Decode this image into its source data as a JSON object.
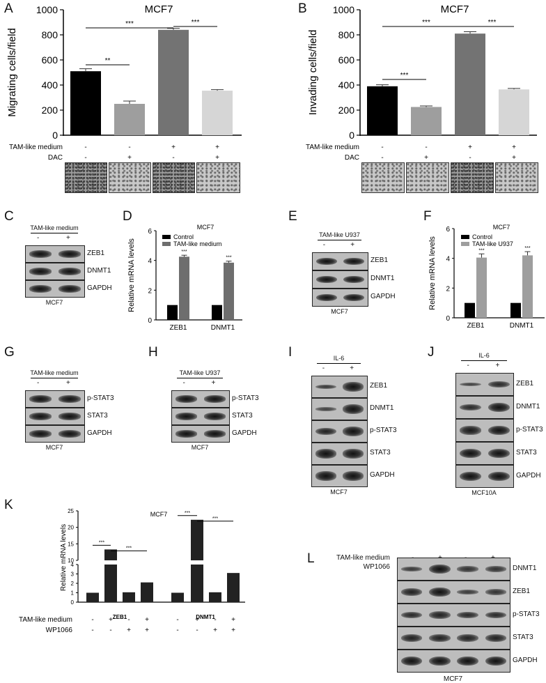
{
  "panel_letters": {
    "A": "A",
    "B": "B",
    "C": "C",
    "D": "D",
    "E": "E",
    "F": "F",
    "G": "G",
    "H": "H",
    "I": "I",
    "J": "J",
    "K": "K",
    "L": "L"
  },
  "chart_data": [
    {
      "panel": "A",
      "type": "bar",
      "title": "MCF7",
      "ylabel": "Migrating cells/field",
      "ylim": [
        0,
        1000
      ],
      "yticks": [
        "0",
        "200",
        "400",
        "600",
        "800",
        "1000"
      ],
      "values": [
        510,
        250,
        840,
        355
      ],
      "errors": [
        20,
        22,
        12,
        8
      ],
      "colors": [
        "#000000",
        "#9e9e9e",
        "#737373",
        "#d6d6d6"
      ],
      "sig": [
        "**",
        "***",
        "***"
      ],
      "conditions": [
        {
          "label": "TAM-like medium",
          "vals": [
            "-",
            "-",
            "+",
            "+"
          ]
        },
        {
          "label": "DAC",
          "vals": [
            "-",
            "+",
            "-",
            "+"
          ]
        }
      ]
    },
    {
      "panel": "B",
      "type": "bar",
      "title": "MCF7",
      "ylabel": "Invading cells/field",
      "ylim": [
        0,
        1000
      ],
      "yticks": [
        "0",
        "200",
        "400",
        "600",
        "800",
        "1000"
      ],
      "values": [
        390,
        225,
        810,
        365
      ],
      "errors": [
        12,
        8,
        15,
        8
      ],
      "colors": [
        "#000000",
        "#9e9e9e",
        "#737373",
        "#d6d6d6"
      ],
      "sig": [
        "***",
        "***",
        "***"
      ],
      "conditions": [
        {
          "label": "TAM-like medium",
          "vals": [
            "-",
            "-",
            "+",
            "+"
          ]
        },
        {
          "label": "DAC",
          "vals": [
            "-",
            "+",
            "-",
            "+"
          ]
        }
      ]
    },
    {
      "panel": "D",
      "type": "bar",
      "title": "MCF7",
      "ylabel": "Relative mRNA levels",
      "ylim": [
        0,
        6
      ],
      "yticks": [
        "0",
        "2",
        "4",
        "6"
      ],
      "categories": [
        "ZEB1",
        "DNMT1"
      ],
      "series": [
        {
          "name": "Control",
          "values": [
            1,
            1
          ],
          "color": "#000000"
        },
        {
          "name": "TAM-like medium",
          "values": [
            4.25,
            3.85
          ],
          "color": "#6e6e6e"
        }
      ],
      "errors": [
        0.1,
        0.1
      ],
      "sig": "***"
    },
    {
      "panel": "F",
      "type": "bar",
      "title": "MCF7",
      "ylabel": "Relative mRNA levels",
      "ylim": [
        0,
        6
      ],
      "yticks": [
        "0",
        "2",
        "4",
        "6"
      ],
      "categories": [
        "ZEB1",
        "DNMT1"
      ],
      "series": [
        {
          "name": "Control",
          "values": [
            1,
            1
          ],
          "color": "#000000"
        },
        {
          "name": "TAM-like U937",
          "values": [
            4.05,
            4.2
          ],
          "color": "#9e9e9e"
        }
      ],
      "errors": [
        0.25,
        0.25
      ],
      "sig": "***"
    },
    {
      "panel": "K",
      "type": "bar",
      "title": "MCF7",
      "ylabel": "Relative mRNA levels",
      "yticks_low": [
        "0",
        "1",
        "2",
        "3",
        "4"
      ],
      "yticks_high": [
        "10",
        "15",
        "20",
        "25"
      ],
      "categories": [
        "ZEB1",
        "DNMT1"
      ],
      "values": [
        [
          1,
          13.3,
          1.05,
          2.1
        ],
        [
          1,
          22.3,
          1.05,
          3.1
        ]
      ],
      "sig": "***",
      "conditions": [
        {
          "label": "TAM-like medium",
          "vals": [
            "-",
            "+",
            "-",
            "+",
            "-",
            "+",
            "-",
            "+"
          ]
        },
        {
          "label": "WP1066",
          "vals": [
            "-",
            "-",
            "+",
            "+",
            "-",
            "-",
            "+",
            "+"
          ]
        }
      ]
    }
  ],
  "blots": {
    "C": {
      "header": "TAM-like medium",
      "lanes": [
        "-",
        "+"
      ],
      "rows": [
        "ZEB1",
        "DNMT1",
        "GAPDH"
      ],
      "cell": "MCF7"
    },
    "E": {
      "header": "TAM-like U937",
      "lanes": [
        "-",
        "+"
      ],
      "rows": [
        "ZEB1",
        "DNMT1",
        "GAPDH"
      ],
      "cell": "MCF7"
    },
    "G": {
      "header": "TAM-like medium",
      "lanes": [
        "-",
        "+"
      ],
      "rows": [
        "p-STAT3",
        "STAT3",
        "GAPDH"
      ],
      "cell": "MCF7"
    },
    "H": {
      "header": "TAM-like U937",
      "lanes": [
        "-",
        "+"
      ],
      "rows": [
        "p-STAT3",
        "STAT3",
        "GAPDH"
      ],
      "cell": "MCF7"
    },
    "I": {
      "header": "IL-6",
      "lanes": [
        "-",
        "+"
      ],
      "rows": [
        "ZEB1",
        "DNMT1",
        "p-STAT3",
        "STAT3",
        "GAPDH"
      ],
      "cell": "MCF7"
    },
    "J": {
      "header": "IL-6",
      "lanes": [
        "-",
        "+"
      ],
      "rows": [
        "ZEB1",
        "DNMT1",
        "p-STAT3",
        "STAT3",
        "GAPDH"
      ],
      "cell": "MCF10A"
    },
    "L": {
      "cond1": "TAM-like medium",
      "cond1_vals": [
        "-",
        "+",
        "-",
        "+"
      ],
      "cond2": "WP1066",
      "cond2_vals": [
        "-",
        "-",
        "+",
        "+"
      ],
      "rows": [
        "DNMT1",
        "ZEB1",
        "p-STAT3",
        "STAT3",
        "GAPDH"
      ],
      "cell": "MCF7"
    }
  }
}
